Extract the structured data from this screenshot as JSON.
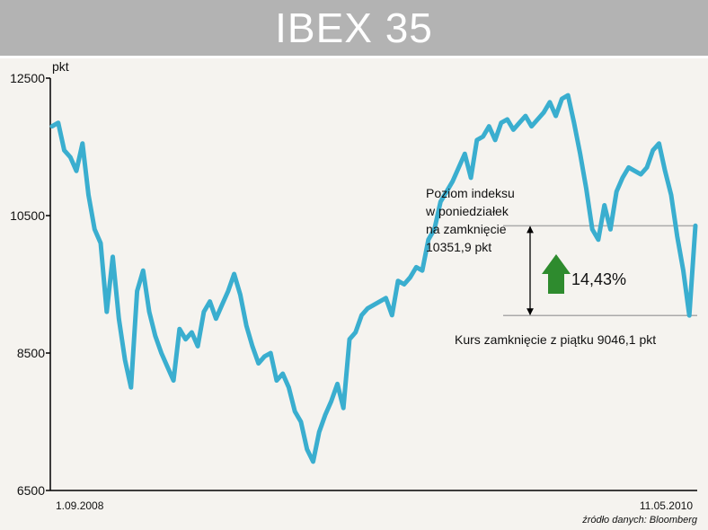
{
  "title": "IBEX 35",
  "chart_data": {
    "type": "line",
    "title": "IBEX 35",
    "ylabel": "pkt",
    "ylim": [
      6500,
      12500
    ],
    "yticks": [
      6500,
      8500,
      10500,
      12500
    ],
    "ytick_labels": [
      "6500",
      "8500",
      "10500",
      "12500"
    ],
    "x_start_label": "1.09.2008",
    "x_end_label": "11.05.2010",
    "line_color": "#3aaecf",
    "grid": false,
    "series": [
      {
        "values": [
          11800,
          11850,
          11450,
          11350,
          11150,
          11550,
          10800,
          10300,
          10100,
          9100,
          9900,
          9000,
          8400,
          8000,
          9400,
          9700,
          9100,
          8750,
          8500,
          8300,
          8100,
          8850,
          8700,
          8800,
          8600,
          9100,
          9250,
          9000,
          9200,
          9400,
          9650,
          9350,
          8900,
          8600,
          8350,
          8450,
          8500,
          8100,
          8200,
          8000,
          7650,
          7500,
          7100,
          6920,
          7350,
          7600,
          7800,
          8050,
          7700,
          8700,
          8800,
          9050,
          9150,
          9200,
          9250,
          9300,
          9050,
          9550,
          9500,
          9600,
          9750,
          9700,
          10150,
          10300,
          10700,
          10850,
          11000,
          11200,
          11400,
          11050,
          11600,
          11650,
          11800,
          11600,
          11850,
          11900,
          11750,
          11850,
          11950,
          11800,
          11900,
          12000,
          12150,
          11950,
          12200,
          12250,
          11850,
          11400,
          10900,
          10300,
          10150,
          10650,
          10300,
          10850,
          11050,
          11200,
          11150,
          11100,
          11200,
          11450,
          11550,
          11150,
          10800,
          10200,
          9700,
          9046,
          10352
        ]
      }
    ],
    "annotations": {
      "upper_text": [
        "Poziom indeksu",
        "w poniedziałek",
        "na zamknięcie",
        "10351,9 pkt"
      ],
      "upper_value": 10351.9,
      "lower_text": "Kurs zamknięcie z  piątku 9046,1 pkt",
      "lower_value": 9046.1,
      "change_text": "14,43%",
      "arrow_color": "#2e8b2e",
      "reference_line_color": "#aaaaaa"
    },
    "source": "źródło danych: Bloomberg"
  }
}
